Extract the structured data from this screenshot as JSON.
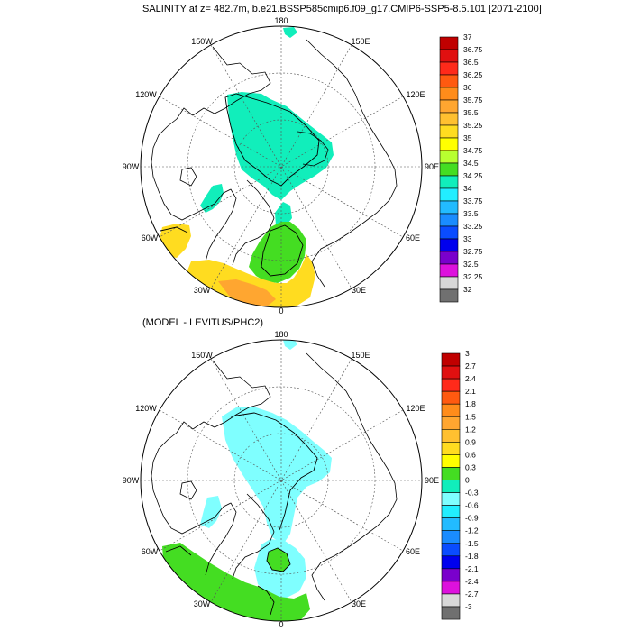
{
  "top": {
    "title": "SALINITY at z= 482.7m, b.e21.BSSP585cmip6.f09_g17.CMIP6-SSP5-8.5.101 [2071-2100]",
    "lon_labels": [
      "180",
      "150W",
      "150E",
      "120W",
      "120E",
      "90W",
      "90E",
      "60W",
      "60E",
      "30W",
      "30E",
      "0"
    ],
    "colorbar": {
      "labels": [
        "37",
        "36.75",
        "36.5",
        "36.25",
        "36",
        "35.75",
        "35.5",
        "35.25",
        "35",
        "34.75",
        "34.5",
        "34.25",
        "34",
        "33.75",
        "33.5",
        "33.25",
        "33",
        "32.75",
        "32.5",
        "32.25",
        "32"
      ],
      "colors": [
        "#c00000",
        "#e01010",
        "#ff2a1a",
        "#ff5a10",
        "#ff8c1a",
        "#ffa630",
        "#ffc030",
        "#ffdc20",
        "#ffff00",
        "#b8ff30",
        "#44dd22",
        "#11eebb",
        "#22eeff",
        "#22bbff",
        "#1a8cff",
        "#0a4cff",
        "#0000ee",
        "#7a00cc",
        "#dd11dd",
        "#d8d8d8",
        "#707070"
      ]
    }
  },
  "bottom": {
    "title": "(MODEL - LEVITUS/PHC2)",
    "lon_labels": [
      "180",
      "150W",
      "150E",
      "120W",
      "120E",
      "90W",
      "90E",
      "60W",
      "60E",
      "30W",
      "30E",
      "0"
    ],
    "colorbar": {
      "labels": [
        "3",
        "2.7",
        "2.4",
        "2.1",
        "1.8",
        "1.5",
        "1.2",
        "0.9",
        "0.6",
        "0.3",
        "0",
        "-0.3",
        "-0.6",
        "-0.9",
        "-1.2",
        "-1.5",
        "-1.8",
        "-2.1",
        "-2.4",
        "-2.7",
        "-3"
      ],
      "colors": [
        "#c00000",
        "#e01010",
        "#ff2a1a",
        "#ff5a10",
        "#ff8c1a",
        "#ffa630",
        "#ffc030",
        "#ffdc20",
        "#ffff00",
        "#44dd22",
        "#11eebb",
        "#7fffff",
        "#22eeff",
        "#22bbff",
        "#1a8cff",
        "#0a4cff",
        "#0000ee",
        "#7a00cc",
        "#dd11dd",
        "#d8d8d8",
        "#707070"
      ]
    }
  }
}
